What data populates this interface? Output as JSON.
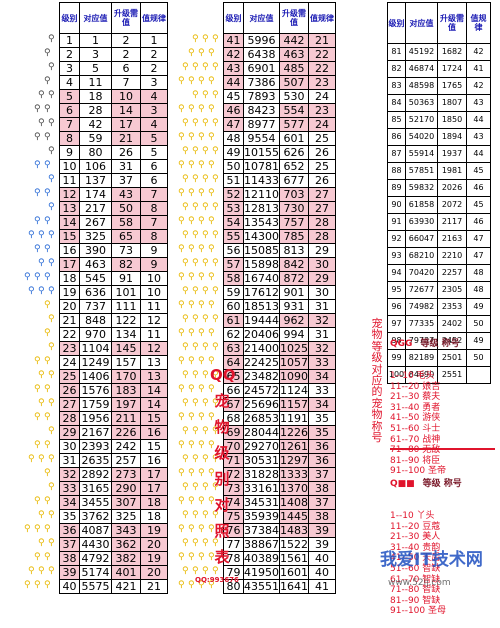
{
  "headers": {
    "h1": "级别",
    "h2": "对应值",
    "h3": "升级需值",
    "h4": "值规律"
  },
  "t1_rows": [
    [
      "1",
      "1",
      "2",
      "1"
    ],
    [
      "2",
      "3",
      "2",
      "2"
    ],
    [
      "3",
      "5",
      "6",
      "2"
    ],
    [
      "4",
      "11",
      "7",
      "3"
    ],
    [
      "5",
      "18",
      "10",
      "4"
    ],
    [
      "6",
      "28",
      "14",
      "3"
    ],
    [
      "7",
      "42",
      "17",
      "4"
    ],
    [
      "8",
      "59",
      "21",
      "5"
    ],
    [
      "9",
      "80",
      "26",
      "5"
    ],
    [
      "10",
      "106",
      "31",
      "6"
    ],
    [
      "11",
      "137",
      "37",
      "6"
    ],
    [
      "12",
      "174",
      "43",
      "7"
    ],
    [
      "13",
      "217",
      "50",
      "8"
    ],
    [
      "14",
      "267",
      "58",
      "7"
    ],
    [
      "15",
      "325",
      "65",
      "8"
    ],
    [
      "16",
      "390",
      "73",
      "9"
    ],
    [
      "17",
      "463",
      "82",
      "9"
    ],
    [
      "18",
      "545",
      "91",
      "10"
    ],
    [
      "19",
      "636",
      "101",
      "10"
    ],
    [
      "20",
      "737",
      "111",
      "11"
    ],
    [
      "21",
      "848",
      "122",
      "12"
    ],
    [
      "22",
      "970",
      "134",
      "11"
    ],
    [
      "23",
      "1104",
      "145",
      "12"
    ],
    [
      "24",
      "1249",
      "157",
      "13"
    ],
    [
      "25",
      "1406",
      "170",
      "13"
    ],
    [
      "26",
      "1576",
      "183",
      "14"
    ],
    [
      "27",
      "1759",
      "197",
      "14"
    ],
    [
      "28",
      "1956",
      "211",
      "15"
    ],
    [
      "29",
      "2167",
      "226",
      "16"
    ],
    [
      "30",
      "2393",
      "242",
      "15"
    ],
    [
      "31",
      "2635",
      "257",
      "16"
    ],
    [
      "32",
      "2892",
      "273",
      "17"
    ],
    [
      "33",
      "3165",
      "290",
      "17"
    ],
    [
      "34",
      "3455",
      "307",
      "18"
    ],
    [
      "35",
      "3762",
      "325",
      "18"
    ],
    [
      "36",
      "4087",
      "343",
      "19"
    ],
    [
      "37",
      "4430",
      "362",
      "20"
    ],
    [
      "38",
      "4792",
      "382",
      "19"
    ],
    [
      "39",
      "5174",
      "401",
      "20"
    ],
    [
      "40",
      "5575",
      "421",
      "21"
    ]
  ],
  "t2_rows": [
    [
      "41",
      "5996",
      "442",
      "21"
    ],
    [
      "42",
      "6438",
      "463",
      "22"
    ],
    [
      "43",
      "6901",
      "485",
      "22"
    ],
    [
      "44",
      "7386",
      "507",
      "23"
    ],
    [
      "45",
      "7893",
      "530",
      "24"
    ],
    [
      "46",
      "8423",
      "554",
      "23"
    ],
    [
      "47",
      "8977",
      "577",
      "24"
    ],
    [
      "48",
      "9554",
      "601",
      "25"
    ],
    [
      "49",
      "10155",
      "626",
      "26"
    ],
    [
      "50",
      "10781",
      "652",
      "25"
    ],
    [
      "51",
      "11433",
      "677",
      "26"
    ],
    [
      "52",
      "12110",
      "703",
      "27"
    ],
    [
      "53",
      "12813",
      "730",
      "27"
    ],
    [
      "54",
      "13543",
      "757",
      "28"
    ],
    [
      "55",
      "14300",
      "785",
      "28"
    ],
    [
      "56",
      "15085",
      "813",
      "29"
    ],
    [
      "57",
      "15898",
      "842",
      "30"
    ],
    [
      "58",
      "16740",
      "872",
      "29"
    ],
    [
      "59",
      "17612",
      "901",
      "30"
    ],
    [
      "60",
      "18513",
      "931",
      "31"
    ],
    [
      "61",
      "19444",
      "962",
      "32"
    ],
    [
      "62",
      "20406",
      "994",
      "31"
    ],
    [
      "63",
      "21400",
      "1025",
      "32"
    ],
    [
      "64",
      "22425",
      "1057",
      "33"
    ],
    [
      "65",
      "23482",
      "1090",
      "34"
    ],
    [
      "66",
      "24572",
      "1124",
      "33"
    ],
    [
      "67",
      "25696",
      "1157",
      "34"
    ],
    [
      "68",
      "26853",
      "1191",
      "35"
    ],
    [
      "69",
      "28044",
      "1226",
      "35"
    ],
    [
      "70",
      "29270",
      "1261",
      "36"
    ],
    [
      "71",
      "30531",
      "1297",
      "36"
    ],
    [
      "72",
      "31828",
      "1333",
      "37"
    ],
    [
      "73",
      "33161",
      "1370",
      "38"
    ],
    [
      "74",
      "34531",
      "1408",
      "37"
    ],
    [
      "75",
      "35939",
      "1445",
      "38"
    ],
    [
      "76",
      "37384",
      "1483",
      "39"
    ],
    [
      "77",
      "38867",
      "1522",
      "39"
    ],
    [
      "78",
      "40389",
      "1561",
      "40"
    ],
    [
      "79",
      "41950",
      "1601",
      "40"
    ],
    [
      "80",
      "43551",
      "1641",
      "41"
    ]
  ],
  "t3_rows": [
    [
      "81",
      "45192",
      "1682",
      "42"
    ],
    [
      "82",
      "46874",
      "1724",
      "41"
    ],
    [
      "83",
      "48598",
      "1765",
      "42"
    ],
    [
      "84",
      "50363",
      "1807",
      "43"
    ],
    [
      "85",
      "52170",
      "1850",
      "44"
    ],
    [
      "86",
      "54020",
      "1894",
      "43"
    ],
    [
      "87",
      "55914",
      "1937",
      "44"
    ],
    [
      "88",
      "57851",
      "1981",
      "45"
    ],
    [
      "89",
      "59832",
      "2026",
      "46"
    ],
    [
      "90",
      "61858",
      "2072",
      "45"
    ],
    [
      "91",
      "63930",
      "2117",
      "46"
    ],
    [
      "92",
      "66047",
      "2163",
      "47"
    ],
    [
      "93",
      "68210",
      "2210",
      "47"
    ],
    [
      "94",
      "70420",
      "2257",
      "48"
    ],
    [
      "95",
      "72677",
      "2305",
      "48"
    ],
    [
      "96",
      "74982",
      "2353",
      "49"
    ],
    [
      "97",
      "77335",
      "2402",
      "50"
    ],
    [
      "98",
      "79737",
      "2452",
      "49"
    ],
    [
      "99",
      "82189",
      "2501",
      "50"
    ],
    [
      "100",
      "84690",
      "2551",
      ""
    ]
  ],
  "pink_rows": {
    "t1": [
      5,
      6,
      7,
      8,
      12,
      13,
      14,
      15,
      17,
      23,
      25,
      26,
      27,
      28,
      29,
      32,
      33,
      34,
      36,
      37,
      38,
      39
    ],
    "t2": [
      41,
      42,
      43,
      44,
      46,
      47,
      52,
      53,
      54,
      55,
      57,
      58,
      61,
      63,
      64,
      65,
      67,
      69,
      70,
      71,
      72,
      73,
      74,
      75,
      76
    ]
  },
  "bone_icon": "bone-icon",
  "colors": {
    "accent_red": "#e0142c",
    "header_blue": "#1c1cb4",
    "row_pink": "#f7c9d2",
    "bone_gray": "#4a4a4a",
    "bone_blue": "#2a6bd6",
    "bone_gold": "#e8b800"
  },
  "mark_text": "QQ\n宠\n物\n级\n别\n对\n照\n表",
  "qq_number": "QQ:993676",
  "vertical_note": "宠\n物\n等\n级\n对\n应\n的\n宠\n物\n称\n号",
  "legend_qqg": {
    "brand": "QGG",
    "header": "等级 称号",
    "lines": "1--10 毛头\n11--20 娘吉\n21--30 蔡夫\n31--40 勇者\n41--50 游侠\n51--60 斗士\n61--70 战神\n71--80 无敌\n81--90 将臣\n91--100 圣帝"
  },
  "legend_q": {
    "brand": "Q■■",
    "header": "等级 称号",
    "lines": "1--10 丫头\n11--20 豆蔻\n21--30 美人\n31--40 贵韵\n41--50 天后\n51--60 智缺\n61--70 智缺\n71--80 智缺\n81--90 智缺\n91--100 圣母"
  },
  "watermark": "我爱IT技术网",
  "watermark_url": "www.52ij.com"
}
